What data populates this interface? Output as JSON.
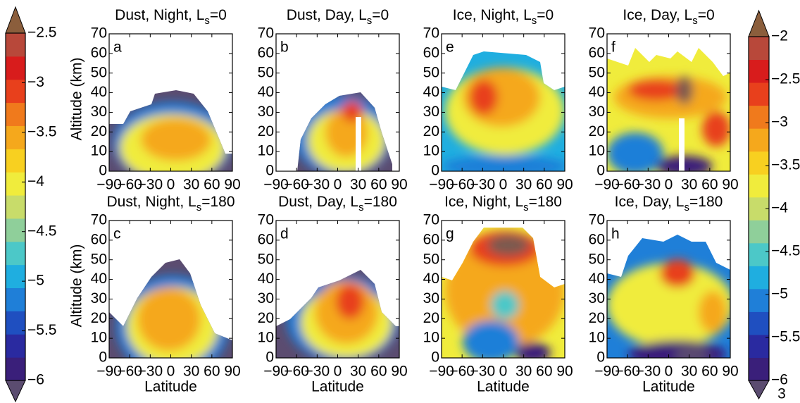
{
  "chart_data": [
    {
      "type": "contour",
      "title_parts": [
        "Dust, Night, L",
        "s",
        "=0"
      ],
      "label": "a",
      "ylabel": "Altitude (km)",
      "xlim": [
        -90,
        90
      ],
      "ylim": [
        0,
        70
      ],
      "xticks": [
        {
          "value": -90,
          "label": "−90"
        },
        {
          "value": -60,
          "label": "−60"
        },
        {
          "value": -30,
          "label": "−30"
        },
        0,
        30,
        60,
        90
      ],
      "yticks": [
        0,
        10,
        20,
        30,
        40,
        50,
        60,
        70
      ]
    },
    {
      "type": "contour",
      "title_parts": [
        "Dust, Day, L",
        "s",
        "=0"
      ],
      "label": "b",
      "xlim": [
        -90,
        90
      ],
      "ylim": [
        0,
        70
      ],
      "xticks": [
        {
          "value": -90,
          "label": "−90"
        },
        {
          "value": -60,
          "label": "−60"
        },
        {
          "value": -30,
          "label": "−30"
        },
        0,
        30,
        60,
        90
      ],
      "yticks": [
        0,
        10,
        20,
        30,
        40,
        50,
        60,
        70
      ]
    },
    {
      "type": "contour",
      "title_parts": [
        "Ice, Night, L",
        "s",
        "=0"
      ],
      "label": "e",
      "xlim": [
        -90,
        90
      ],
      "ylim": [
        0,
        70
      ],
      "xticks": [
        {
          "value": -90,
          "label": "−90"
        },
        {
          "value": -60,
          "label": "−60"
        },
        {
          "value": -30,
          "label": "−30"
        },
        0,
        30,
        60,
        90
      ],
      "yticks": [
        0,
        10,
        20,
        30,
        40,
        50,
        60,
        70
      ]
    },
    {
      "type": "contour",
      "title_parts": [
        "Ice, Day, L",
        "s",
        "=0"
      ],
      "label": "f",
      "xlim": [
        -90,
        90
      ],
      "ylim": [
        0,
        70
      ],
      "xticks": [
        {
          "value": -90,
          "label": "−90"
        },
        {
          "value": -60,
          "label": "−60"
        },
        {
          "value": -30,
          "label": "−30"
        },
        0,
        30,
        60,
        90
      ],
      "yticks": [
        0,
        10,
        20,
        30,
        40,
        50,
        60,
        70
      ]
    },
    {
      "type": "contour",
      "title_parts": [
        "Dust, Night, L",
        "s",
        "=180"
      ],
      "label": "c",
      "ylabel": "Altitude (km)",
      "xlabel": "Latitude",
      "xlim": [
        -90,
        90
      ],
      "ylim": [
        0,
        70
      ],
      "xticks": [
        {
          "value": -90,
          "label": "−90"
        },
        {
          "value": -60,
          "label": "−60"
        },
        {
          "value": -30,
          "label": "−30"
        },
        0,
        30,
        60,
        90
      ],
      "yticks": [
        0,
        10,
        20,
        30,
        40,
        50,
        60,
        70
      ]
    },
    {
      "type": "contour",
      "title_parts": [
        "Dust, Day, L",
        "s",
        "=180"
      ],
      "label": "d",
      "xlabel": "Latitude",
      "xlim": [
        -90,
        90
      ],
      "ylim": [
        0,
        70
      ],
      "xticks": [
        {
          "value": -90,
          "label": "−90"
        },
        {
          "value": -60,
          "label": "−60"
        },
        {
          "value": -30,
          "label": "−30"
        },
        0,
        30,
        60,
        90
      ],
      "yticks": [
        0,
        10,
        20,
        30,
        40,
        50,
        60,
        70
      ]
    },
    {
      "type": "contour",
      "title_parts": [
        "Ice, Night, L",
        "s",
        "=180"
      ],
      "label": "g",
      "xlabel": "Latitude",
      "xlim": [
        -90,
        90
      ],
      "ylim": [
        0,
        70
      ],
      "xticks": [
        {
          "value": -90,
          "label": "−90"
        },
        {
          "value": -60,
          "label": "−60"
        },
        {
          "value": -30,
          "label": "−30"
        },
        0,
        30,
        60,
        90
      ],
      "yticks": [
        0,
        10,
        20,
        30,
        40,
        50,
        60,
        70
      ]
    },
    {
      "type": "contour",
      "title_parts": [
        "Ice, Day, L",
        "s",
        "=180"
      ],
      "label": "h",
      "xlabel": "Latitude",
      "xlim": [
        -90,
        90
      ],
      "ylim": [
        0,
        70
      ],
      "xticks": [
        {
          "value": -90,
          "label": "−90"
        },
        {
          "value": -60,
          "label": "−60"
        },
        {
          "value": -30,
          "label": "−30"
        },
        0,
        30,
        60,
        90
      ],
      "yticks": [
        0,
        10,
        20,
        30,
        40,
        50,
        60,
        70
      ]
    }
  ],
  "colorbars": [
    {
      "type": "colorbar",
      "ylim": [
        -6,
        -2.5
      ],
      "yticks": [
        {
          "value": -6,
          "label": "−6"
        },
        {
          "value": -5.5,
          "label": "−5.5"
        },
        {
          "value": -5,
          "label": "−5"
        },
        {
          "value": -4.5,
          "label": "−4.5"
        },
        {
          "value": -4,
          "label": "−4"
        },
        {
          "value": -3.5,
          "label": "−3.5"
        },
        {
          "value": -3,
          "label": "−3"
        },
        {
          "value": -2.5,
          "label": "−2.5"
        }
      ],
      "colors": [
        "#5b4c70",
        "#3a1f7a",
        "#2a2aa0",
        "#1f4fc0",
        "#1f7fd8",
        "#1faee0",
        "#4cc8c8",
        "#8fcf9a",
        "#c8dc6a",
        "#f0ec3c",
        "#f8d020",
        "#f5a81c",
        "#f07a1c",
        "#e8401c",
        "#d81c1c",
        "#b8483a",
        "#8b5e3c"
      ]
    },
    {
      "type": "colorbar",
      "ylim": [
        -6,
        -2
      ],
      "yticks": [
        {
          "value": -6,
          "label": "−6"
        },
        {
          "value": -5.5,
          "label": "−5.5"
        },
        {
          "value": -5,
          "label": "−5"
        },
        {
          "value": -4.5,
          "label": "−4.5"
        },
        {
          "value": -4,
          "label": "−4"
        },
        {
          "value": -3.5,
          "label": "−3.5"
        },
        {
          "value": -3,
          "label": "−3"
        },
        {
          "value": -2.5,
          "label": "−2.5"
        },
        {
          "value": -2,
          "label": "−2"
        }
      ],
      "colors": [
        "#5b4c70",
        "#3a1f7a",
        "#2a2aa0",
        "#1f4fc0",
        "#1f7fd8",
        "#1faee0",
        "#4cc8c8",
        "#8fcf9a",
        "#c8dc6a",
        "#f0ec3c",
        "#f8d020",
        "#f5a81c",
        "#f07a1c",
        "#e8401c",
        "#d81c1c",
        "#b8483a",
        "#8b5e3c"
      ]
    }
  ],
  "page_label": "3"
}
